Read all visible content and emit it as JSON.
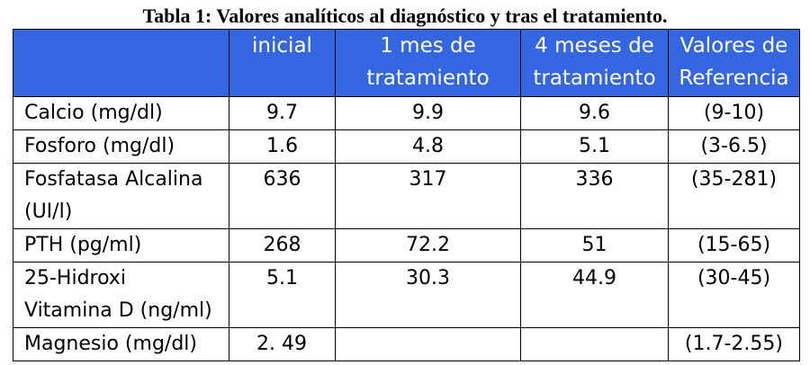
{
  "title": "Tabla 1: Valores analíticos al diagnóstico y tras el tratamiento.",
  "headers": {
    "col0": "",
    "col1": "inicial",
    "col2": "1 mes de\ntratamiento",
    "col3": "4 meses de\ntratamiento",
    "col4": "Valores de\nReferencia"
  },
  "colors": {
    "header_bg": "#3366e0",
    "header_text": "#ffffff"
  },
  "rows": [
    {
      "label": "Calcio (mg/dl)",
      "inicial": "9.7",
      "mes1": "9.9",
      "mes4": "9.6",
      "ref": "(9-10)"
    },
    {
      "label": "Fosforo (mg/dl)",
      "inicial": "1.6",
      "mes1": "4.8",
      "mes4": "5.1",
      "ref": "(3-6.5)"
    },
    {
      "label": "Fosfatasa Alcalina\n(UI/l)",
      "inicial": "636",
      "mes1": "317",
      "mes4": "336",
      "ref": "(35-281)"
    },
    {
      "label": "PTH (pg/ml)",
      "inicial": "268",
      "mes1": "72.2",
      "mes4": "51",
      "ref": "(15-65)"
    },
    {
      "label": "25-Hidroxi\nVitamina D (ng/ml)",
      "inicial": "5.1",
      "mes1": "30.3",
      "mes4": "44.9",
      "ref": "(30-45)"
    },
    {
      "label": "Magnesio (mg/dl)",
      "inicial": "2. 49",
      "mes1": "",
      "mes4": "",
      "ref": "(1.7-2.55)"
    }
  ]
}
